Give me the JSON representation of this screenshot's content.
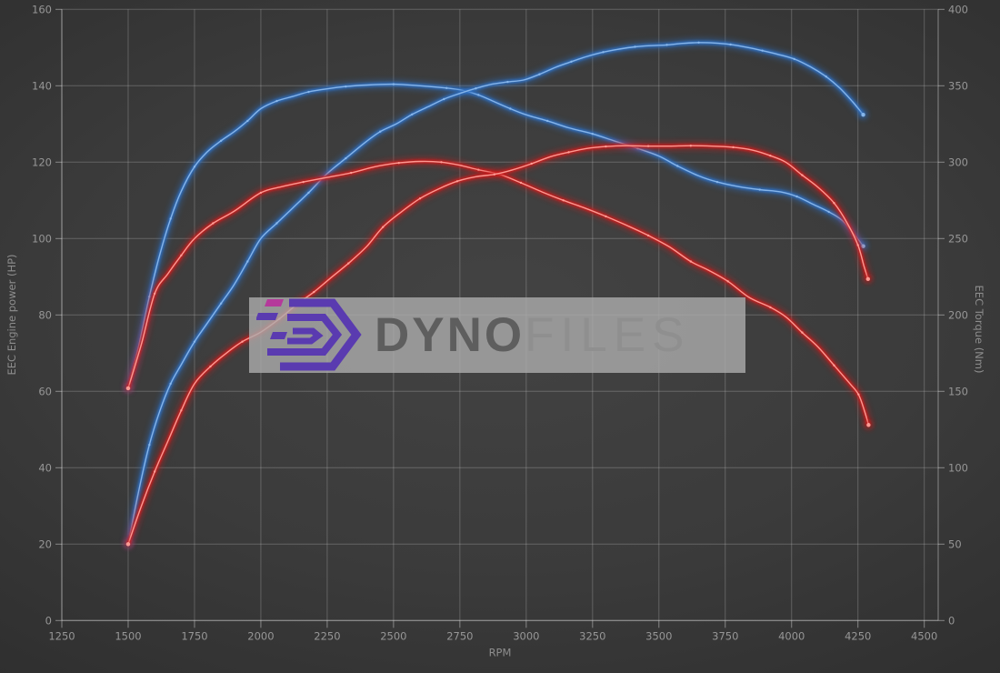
{
  "chart_data": {
    "type": "line",
    "title": "",
    "legend": "none",
    "grid": true,
    "x_axis": {
      "label": "RPM",
      "min": 1250,
      "max": 4500,
      "ticks": [
        1250,
        1500,
        1750,
        2000,
        2250,
        2500,
        2750,
        3000,
        3250,
        3500,
        3750,
        4000,
        4250,
        4500
      ]
    },
    "y_axis_left": {
      "label": "EEC Engine power (HP)",
      "min": 0,
      "max": 160,
      "ticks": [
        0,
        20,
        40,
        60,
        80,
        100,
        120,
        140,
        160
      ]
    },
    "y_axis_right": {
      "label": "EEC Torque (Nm)",
      "min": 0,
      "max": 400,
      "ticks": [
        0,
        50,
        100,
        150,
        200,
        250,
        300,
        350,
        400
      ]
    },
    "series": [
      {
        "name": "blue-torque",
        "axis": "right",
        "unit": "Nm",
        "color": "#2f6fc2",
        "core_color": "#8ab8ec",
        "points": [
          [
            1500,
            152
          ],
          [
            1540,
            180
          ],
          [
            1580,
            212
          ],
          [
            1620,
            240
          ],
          [
            1660,
            263
          ],
          [
            1700,
            281
          ],
          [
            1750,
            297
          ],
          [
            1800,
            307
          ],
          [
            1850,
            314
          ],
          [
            1900,
            320
          ],
          [
            1950,
            327
          ],
          [
            2000,
            335
          ],
          [
            2060,
            340
          ],
          [
            2120,
            343
          ],
          [
            2180,
            346
          ],
          [
            2250,
            348
          ],
          [
            2320,
            349.5
          ],
          [
            2400,
            350.5
          ],
          [
            2500,
            351
          ],
          [
            2600,
            350
          ],
          [
            2700,
            348.5
          ],
          [
            2760,
            347
          ],
          [
            2820,
            344
          ],
          [
            2880,
            339.5
          ],
          [
            2940,
            335
          ],
          [
            3000,
            331
          ],
          [
            3080,
            327
          ],
          [
            3160,
            322.5
          ],
          [
            3250,
            318.5
          ],
          [
            3330,
            314
          ],
          [
            3420,
            309
          ],
          [
            3500,
            304
          ],
          [
            3570,
            297.5
          ],
          [
            3650,
            291
          ],
          [
            3720,
            287
          ],
          [
            3800,
            284
          ],
          [
            3880,
            282
          ],
          [
            3960,
            280.5
          ],
          [
            4020,
            277.5
          ],
          [
            4080,
            272.5
          ],
          [
            4140,
            267.5
          ],
          [
            4190,
            262
          ],
          [
            4235,
            253
          ],
          [
            4270,
            245
          ]
        ]
      },
      {
        "name": "blue-power",
        "axis": "left",
        "unit": "HP",
        "color": "#2f6fc2",
        "core_color": "#8ab8ec",
        "points": [
          [
            1500,
            20
          ],
          [
            1540,
            34
          ],
          [
            1580,
            46
          ],
          [
            1620,
            55
          ],
          [
            1660,
            62
          ],
          [
            1700,
            67
          ],
          [
            1750,
            73
          ],
          [
            1800,
            78
          ],
          [
            1850,
            83
          ],
          [
            1900,
            88
          ],
          [
            1950,
            94
          ],
          [
            2000,
            100
          ],
          [
            2060,
            104
          ],
          [
            2120,
            108
          ],
          [
            2180,
            112
          ],
          [
            2250,
            117
          ],
          [
            2320,
            121
          ],
          [
            2390,
            125
          ],
          [
            2450,
            128
          ],
          [
            2510,
            130
          ],
          [
            2570,
            132.5
          ],
          [
            2630,
            134.5
          ],
          [
            2690,
            136.5
          ],
          [
            2750,
            138
          ],
          [
            2810,
            139.3
          ],
          [
            2870,
            140.4
          ],
          [
            2930,
            141
          ],
          [
            2990,
            141.5
          ],
          [
            3050,
            143
          ],
          [
            3110,
            144.8
          ],
          [
            3170,
            146.3
          ],
          [
            3230,
            147.7
          ],
          [
            3290,
            148.8
          ],
          [
            3350,
            149.6
          ],
          [
            3410,
            150.2
          ],
          [
            3470,
            150.5
          ],
          [
            3530,
            150.7
          ],
          [
            3590,
            151.1
          ],
          [
            3650,
            151.3
          ],
          [
            3710,
            151.2
          ],
          [
            3770,
            150.8
          ],
          [
            3830,
            150.1
          ],
          [
            3890,
            149.2
          ],
          [
            3950,
            148.2
          ],
          [
            4010,
            147
          ],
          [
            4070,
            145
          ],
          [
            4130,
            142.4
          ],
          [
            4180,
            139.5
          ],
          [
            4230,
            135.8
          ],
          [
            4270,
            132.4
          ]
        ]
      },
      {
        "name": "red-torque",
        "axis": "right",
        "unit": "Nm",
        "color": "#cc1f1f",
        "core_color": "#ff9f98",
        "points": [
          [
            1500,
            152
          ],
          [
            1550,
            181
          ],
          [
            1600,
            214
          ],
          [
            1650,
            227
          ],
          [
            1700,
            239
          ],
          [
            1750,
            250
          ],
          [
            1820,
            260
          ],
          [
            1900,
            268
          ],
          [
            2000,
            280
          ],
          [
            2080,
            284
          ],
          [
            2160,
            287
          ],
          [
            2250,
            290
          ],
          [
            2340,
            293
          ],
          [
            2430,
            297
          ],
          [
            2520,
            299.5
          ],
          [
            2600,
            300.5
          ],
          [
            2680,
            300
          ],
          [
            2750,
            298
          ],
          [
            2820,
            295
          ],
          [
            2900,
            292
          ],
          [
            2980,
            286.5
          ],
          [
            3060,
            280.5
          ],
          [
            3140,
            275
          ],
          [
            3220,
            270
          ],
          [
            3300,
            264.5
          ],
          [
            3380,
            258.5
          ],
          [
            3460,
            252
          ],
          [
            3540,
            244.5
          ],
          [
            3620,
            235
          ],
          [
            3690,
            229
          ],
          [
            3760,
            222
          ],
          [
            3840,
            211.5
          ],
          [
            3920,
            205
          ],
          [
            3980,
            198.5
          ],
          [
            4040,
            188.5
          ],
          [
            4100,
            179
          ],
          [
            4160,
            167
          ],
          [
            4220,
            155
          ],
          [
            4252,
            148
          ],
          [
            4275,
            137
          ],
          [
            4290,
            128
          ]
        ]
      },
      {
        "name": "red-power",
        "axis": "left",
        "unit": "HP",
        "color": "#cc1f1f",
        "core_color": "#ff9f98",
        "points": [
          [
            1500,
            20
          ],
          [
            1550,
            30
          ],
          [
            1600,
            39
          ],
          [
            1650,
            47
          ],
          [
            1700,
            55
          ],
          [
            1750,
            62
          ],
          [
            1810,
            66.5
          ],
          [
            1870,
            70
          ],
          [
            1930,
            73
          ],
          [
            2000,
            75.5
          ],
          [
            2070,
            79
          ],
          [
            2140,
            83
          ],
          [
            2200,
            86
          ],
          [
            2260,
            89.5
          ],
          [
            2330,
            93.5
          ],
          [
            2400,
            98
          ],
          [
            2460,
            103
          ],
          [
            2530,
            107
          ],
          [
            2600,
            110.5
          ],
          [
            2670,
            113
          ],
          [
            2740,
            115
          ],
          [
            2810,
            116.2
          ],
          [
            2880,
            116.8
          ],
          [
            2950,
            118
          ],
          [
            3020,
            119.6
          ],
          [
            3090,
            121.4
          ],
          [
            3160,
            122.6
          ],
          [
            3230,
            123.6
          ],
          [
            3300,
            124.1
          ],
          [
            3380,
            124.3
          ],
          [
            3460,
            124.2
          ],
          [
            3540,
            124.2
          ],
          [
            3620,
            124.3
          ],
          [
            3700,
            124.2
          ],
          [
            3780,
            123.9
          ],
          [
            3850,
            123.2
          ],
          [
            3920,
            121.7
          ],
          [
            3980,
            119.9
          ],
          [
            4040,
            116.6
          ],
          [
            4100,
            113.4
          ],
          [
            4160,
            109.3
          ],
          [
            4210,
            104
          ],
          [
            4250,
            98.3
          ],
          [
            4272,
            93
          ],
          [
            4288,
            89.4
          ]
        ]
      }
    ]
  },
  "watermark": {
    "brand_primary": "Dyno",
    "brand_secondary": "Files",
    "logo_color": "#5a3bb0",
    "logo_accent_color": "#b5399b",
    "box_color": "#acacac"
  }
}
